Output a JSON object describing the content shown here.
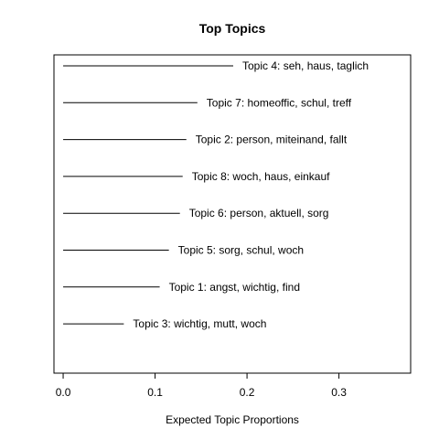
{
  "chart_data": {
    "type": "bar",
    "title": "Top Topics",
    "xlabel": "Expected Topic Proportions",
    "ylabel": "",
    "xlim": [
      -0.01,
      0.378
    ],
    "xticks": [
      0.0,
      0.1,
      0.2,
      0.3
    ],
    "xtick_labels": [
      "0.0",
      "0.1",
      "0.2",
      "0.3"
    ],
    "grid": false,
    "orientation": "horizontal",
    "categories": [
      "Topic 4: seh, haus, taglich",
      "Topic 7: homeoffic, schul, treff",
      "Topic 2: person, miteinand, fallt",
      "Topic 8: woch, haus, einkauf",
      "Topic 6: person, aktuell, sorg",
      "Topic 5: sorg, schul, woch",
      "Topic 1: angst, wichtig, find",
      "Topic 3: wichtig, mutt, woch"
    ],
    "values": [
      0.185,
      0.146,
      0.134,
      0.13,
      0.127,
      0.115,
      0.105,
      0.066
    ],
    "colors": {
      "line": "#000000",
      "background": "#ffffff"
    }
  }
}
